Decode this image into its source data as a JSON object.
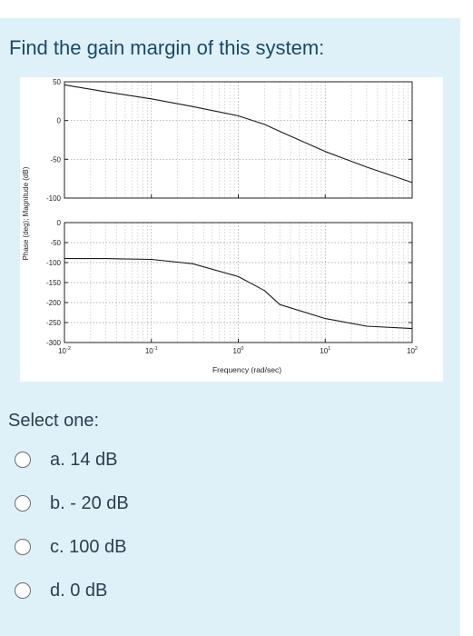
{
  "question": {
    "text": "Find the gain margin of this system:"
  },
  "chart_data": [
    {
      "type": "line",
      "panel": "magnitude",
      "ylim": [
        -100,
        50
      ],
      "yticks": [
        "50",
        "0",
        "-50",
        "-100"
      ],
      "x": [
        0.01,
        0.03,
        0.1,
        0.3,
        1,
        2,
        3,
        10,
        30,
        100
      ],
      "series": [
        {
          "values": [
            46,
            37,
            28,
            18,
            6,
            -5,
            -14,
            -40,
            -60,
            -80
          ]
        }
      ]
    },
    {
      "type": "line",
      "panel": "phase",
      "ylim": [
        -300,
        0
      ],
      "yticks": [
        "0",
        "-50",
        "-100",
        "-150",
        "-200",
        "-250",
        "-300"
      ],
      "x": [
        0.01,
        0.03,
        0.1,
        0.3,
        1,
        2,
        3,
        10,
        30,
        100
      ],
      "series": [
        {
          "values": [
            -90,
            -90,
            -92,
            -103,
            -135,
            -170,
            -205,
            -240,
            -259,
            -265
          ]
        }
      ]
    }
  ],
  "axes": {
    "ylabel": "Phase (deg); Magnitude (dB)",
    "xlabel": "Frequency (rad/sec)",
    "xticks": [
      {
        "base": "10",
        "exp": "-2",
        "value": 0.01
      },
      {
        "base": "10",
        "exp": "-1",
        "value": 0.1
      },
      {
        "base": "10",
        "exp": "0",
        "value": 1
      },
      {
        "base": "10",
        "exp": "1",
        "value": 10
      },
      {
        "base": "10",
        "exp": "2",
        "value": 100
      }
    ]
  },
  "select_one": "Select one:",
  "options": [
    {
      "label": "a. 14 dB"
    },
    {
      "label": "b. - 20 dB"
    },
    {
      "label": "c. 100 dB"
    },
    {
      "label": "d. 0 dB"
    }
  ]
}
